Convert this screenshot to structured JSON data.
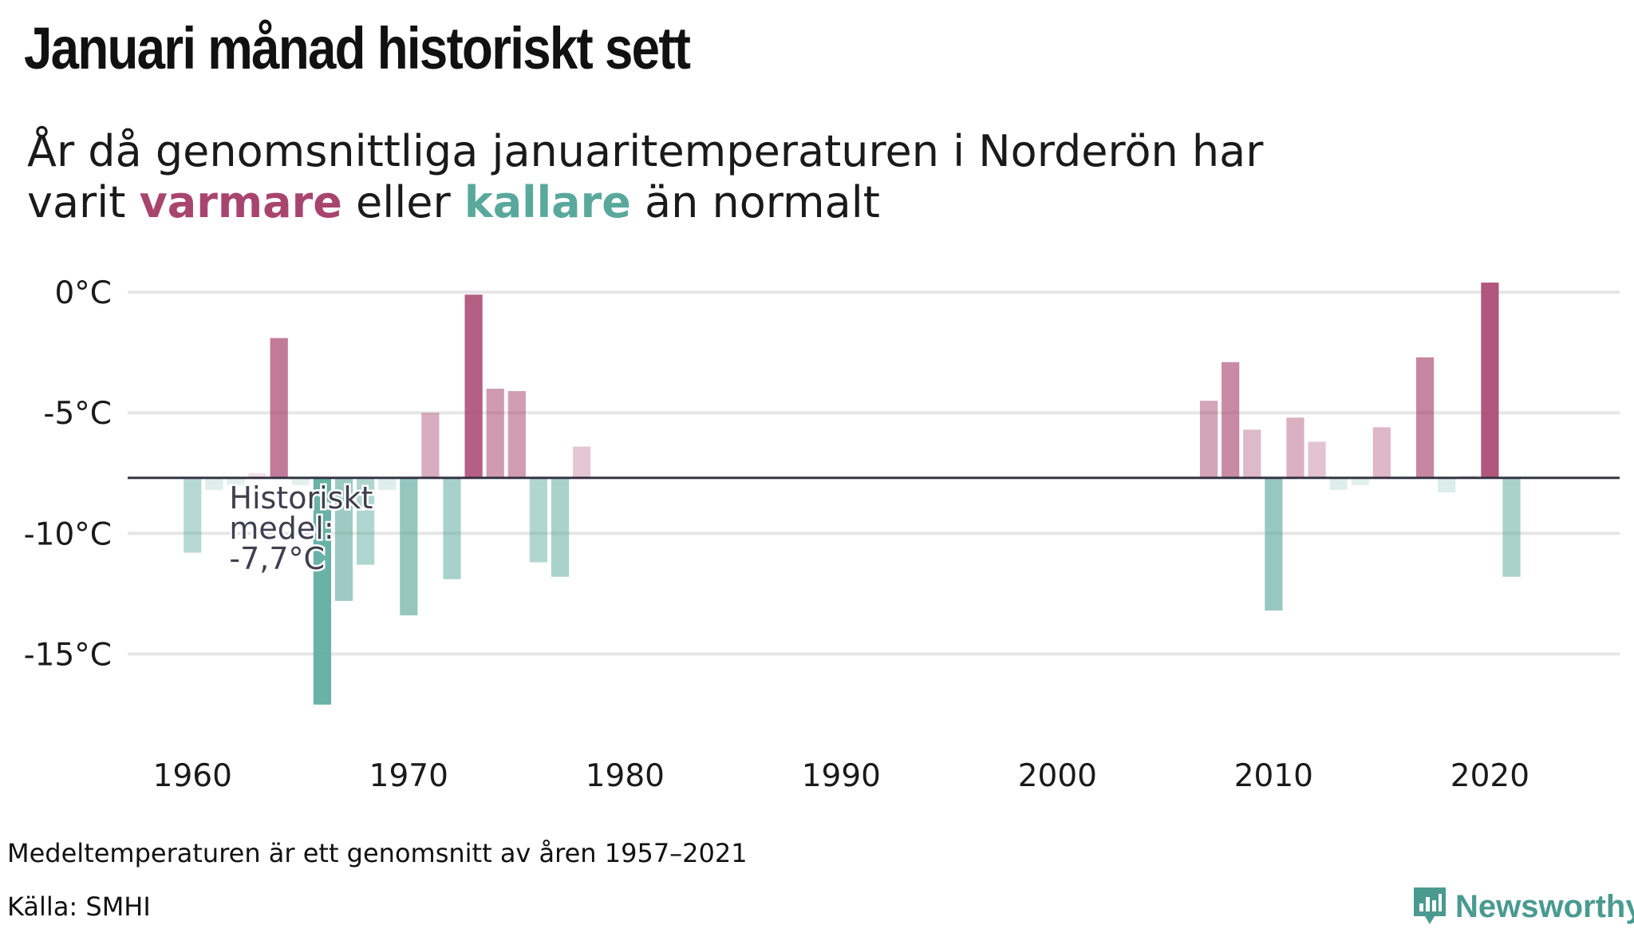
{
  "title": "Januari månad historiskt sett",
  "subtitle": {
    "line1": "År då genomsnittliga januaritemperaturen  i Norderön har",
    "line2_prefix": "varit ",
    "warm_word": "varmare",
    "line2_mid": " eller ",
    "cold_word": "kallare",
    "line2_suffix": " än normalt"
  },
  "chart_data": {
    "type": "bar",
    "baseline": -7.7,
    "baseline_label": [
      "Historiskt",
      "medel:",
      "-7,7°C"
    ],
    "ylim": [
      -18,
      0.7
    ],
    "xlim": [
      1957,
      2026
    ],
    "y_ticks": [
      0,
      -5,
      -10,
      -15
    ],
    "y_tick_labels": [
      "0°C",
      "-5°C",
      "-10°C",
      "-15°C"
    ],
    "x_ticks": [
      1960,
      1970,
      1980,
      1990,
      2000,
      2010,
      2020
    ],
    "x_tick_labels": [
      "1960",
      "1970",
      "1980",
      "1990",
      "2000",
      "2010",
      "2020"
    ],
    "grid": true,
    "warm_color": "#a8456f",
    "cold_color": "#5aa89c",
    "years": [
      1960,
      1961,
      1962,
      1963,
      1964,
      1965,
      1966,
      1967,
      1968,
      1969,
      1970,
      1971,
      1972,
      1973,
      1974,
      1975,
      1976,
      1977,
      1978,
      2007,
      2008,
      2009,
      2010,
      2011,
      2012,
      2013,
      2014,
      2015,
      2016,
      2017,
      2018,
      2019,
      2020,
      2021
    ],
    "values": [
      -10.8,
      -8.2,
      -8.0,
      -7.5,
      -1.9,
      -8.0,
      -17.1,
      -12.8,
      -11.3,
      -8.2,
      -13.4,
      -5.0,
      -11.9,
      -0.1,
      -4.0,
      -4.1,
      -11.2,
      -11.8,
      -6.4,
      -4.5,
      -2.9,
      -5.7,
      -13.2,
      -5.2,
      -6.2,
      -8.2,
      -8.0,
      -5.6,
      -7.7,
      -2.7,
      -8.3,
      -7.6,
      0.4,
      -11.8
    ]
  },
  "notes": {
    "average": "Medeltemperaturen är ett genomsnitt av åren 1957–2021",
    "source": "Källa: SMHI"
  },
  "brand": {
    "name": "Newsworthy",
    "icon": "bar-chart-logo-icon",
    "color": "#4a9a90"
  }
}
